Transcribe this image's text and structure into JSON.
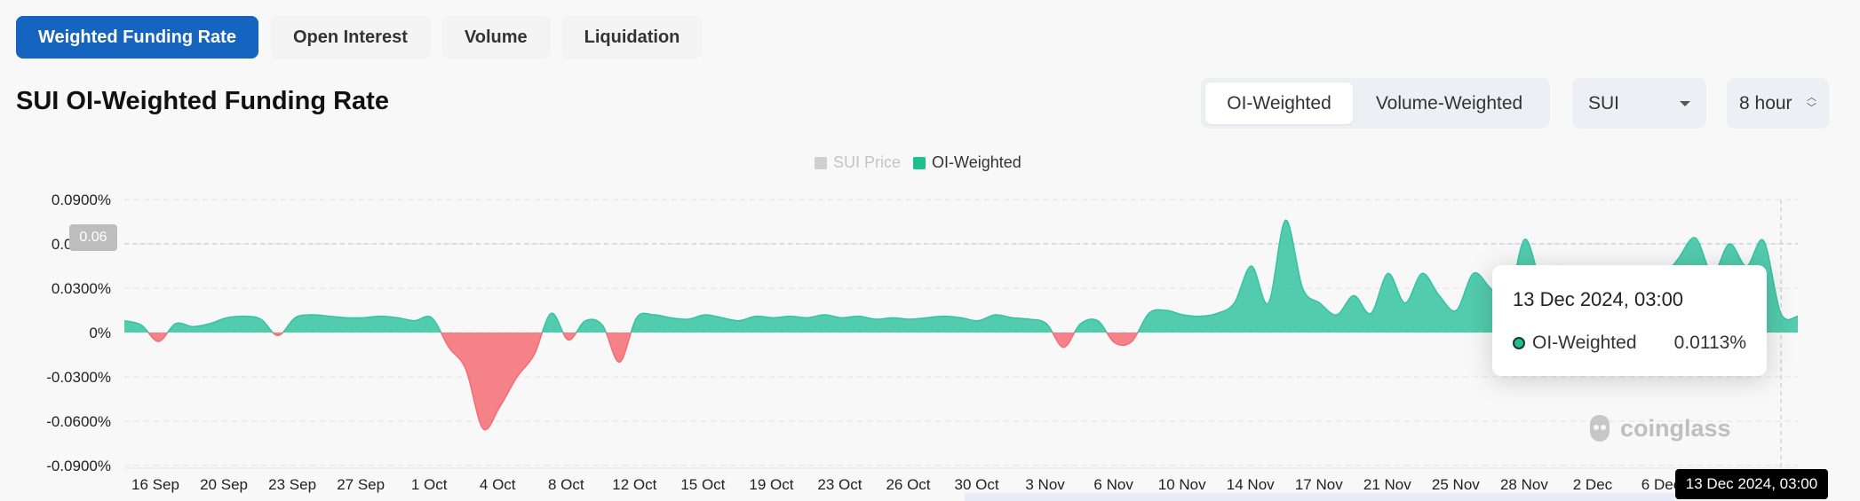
{
  "tabs": [
    {
      "label": "Weighted Funding Rate",
      "active": true
    },
    {
      "label": "Open Interest",
      "active": false
    },
    {
      "label": "Volume",
      "active": false
    },
    {
      "label": "Liquidation",
      "active": false
    }
  ],
  "page_title": "SUI OI-Weighted Funding Rate",
  "weighting": {
    "options": [
      "OI-Weighted",
      "Volume-Weighted"
    ],
    "selected": "OI-Weighted"
  },
  "coin_select": {
    "value": "SUI"
  },
  "interval_select": {
    "value": "8 hour"
  },
  "colors": {
    "positive": "#35c3a1",
    "negative": "#f46d75",
    "accent": "#1565c0",
    "legend_price": "#cfcfcf",
    "legend_oi": "#1dbf8a"
  },
  "tooltip": {
    "title": "13 Dec 2024, 03:00",
    "series": "OI-Weighted",
    "value": "0.0113%"
  },
  "pin_label": "0.06",
  "cursor_label": "13 Dec 2024, 03:00",
  "watermark": "coinglass",
  "chart_data": {
    "type": "area",
    "legend": [
      {
        "name": "SUI Price",
        "enabled": false
      },
      {
        "name": "OI-Weighted",
        "enabled": true
      }
    ],
    "yticks": [
      "0.0900%",
      "0.0600%",
      "0.0300%",
      "0%",
      "-0.0300%",
      "-0.0600%",
      "-0.0900%"
    ],
    "ylim": [
      -0.09,
      0.09
    ],
    "ytick_values": [
      0.09,
      0.06,
      0.03,
      0,
      -0.03,
      -0.06,
      -0.09
    ],
    "xticks": [
      "16 Sep",
      "20 Sep",
      "23 Sep",
      "27 Sep",
      "1 Oct",
      "4 Oct",
      "8 Oct",
      "12 Oct",
      "15 Oct",
      "19 Oct",
      "23 Oct",
      "26 Oct",
      "30 Oct",
      "3 Nov",
      "6 Nov",
      "10 Nov",
      "14 Nov",
      "17 Nov",
      "21 Nov",
      "25 Nov",
      "28 Nov",
      "2 Dec",
      "6 Dec"
    ],
    "grid": true,
    "x_days": [
      0,
      1,
      2,
      3,
      4,
      5,
      6,
      7,
      8,
      9,
      10,
      11,
      12,
      13,
      14,
      15,
      16,
      17,
      18,
      19,
      20,
      21,
      22,
      23,
      24,
      25,
      26,
      27,
      28,
      29,
      30,
      31,
      32,
      33,
      34,
      35,
      36,
      37,
      38,
      39,
      40,
      41,
      42,
      43,
      44,
      45,
      46,
      47,
      48,
      49,
      50,
      51,
      52,
      53,
      54,
      55,
      56,
      57,
      58,
      59,
      60,
      61,
      62,
      63,
      64,
      65,
      66,
      67,
      68,
      69,
      70,
      71,
      72,
      73,
      74,
      75,
      76,
      77,
      78,
      79,
      80,
      81,
      82,
      83,
      84,
      85,
      86,
      87,
      88,
      89,
      90,
      91,
      92,
      93,
      94,
      95,
      96,
      97,
      98
    ],
    "values": [
      0.008,
      0.005,
      -0.006,
      0.006,
      0.004,
      0.006,
      0.01,
      0.011,
      0.009,
      -0.002,
      0.01,
      0.012,
      0.011,
      0.01,
      0.01,
      0.011,
      0.01,
      0.008,
      0.01,
      -0.01,
      -0.025,
      -0.065,
      -0.05,
      -0.03,
      -0.015,
      0.013,
      -0.005,
      0.008,
      0.005,
      -0.02,
      0.01,
      0.012,
      0.01,
      0.009,
      0.012,
      0.01,
      0.008,
      0.011,
      0.01,
      0.011,
      0.01,
      0.012,
      0.01,
      0.011,
      0.009,
      0.01,
      0.009,
      0.01,
      0.011,
      0.01,
      0.008,
      0.012,
      0.01,
      0.009,
      0.006,
      -0.01,
      0.006,
      0.008,
      -0.007,
      -0.006,
      0.013,
      0.015,
      0.012,
      0.011,
      0.013,
      0.02,
      0.045,
      0.02,
      0.076,
      0.03,
      0.02,
      0.012,
      0.025,
      0.013,
      0.04,
      0.02,
      0.04,
      0.025,
      0.015,
      0.04,
      0.03,
      0.02,
      0.063,
      0.035,
      0.045,
      0.02,
      0.025,
      0.013,
      0.018,
      0.02,
      0.035,
      0.05,
      0.064,
      0.04,
      0.06,
      0.045,
      0.062,
      0.013,
      0.011
    ]
  }
}
